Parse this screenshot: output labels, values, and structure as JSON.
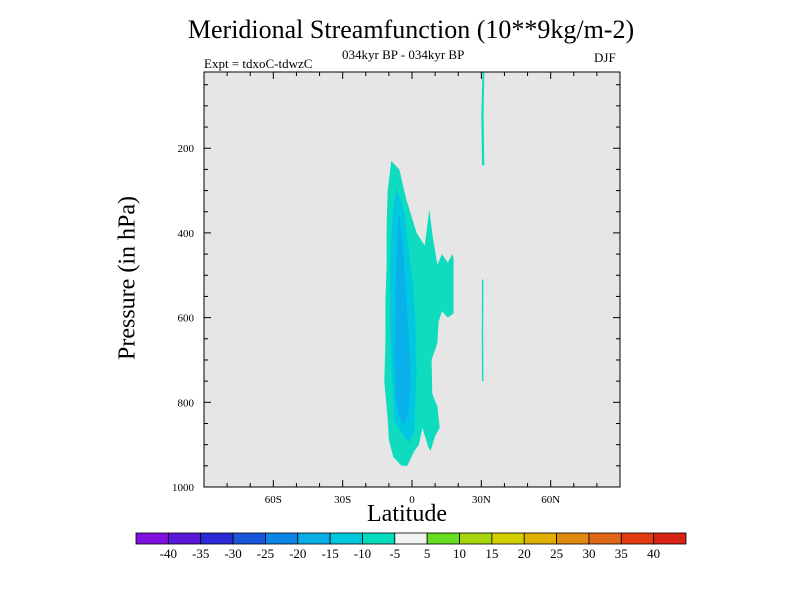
{
  "title": "Meridional Streamfunction (10**9kg/m-2)",
  "subtitle": "034kyr BP - 034kyr BP",
  "experiment_label": "Expt = tdxoC-tdwzC",
  "season_label": "DJF",
  "chart_data": {
    "type": "contour",
    "xlabel": "Latitude",
    "ylabel": "Pressure (in hPa)",
    "x_ticks": [
      {
        "value": -60,
        "label": "60S"
      },
      {
        "value": -30,
        "label": "30S"
      },
      {
        "value": 0,
        "label": "0"
      },
      {
        "value": 30,
        "label": "30N"
      },
      {
        "value": 60,
        "label": "60N"
      }
    ],
    "y_ticks": [
      {
        "value": 200,
        "label": "200"
      },
      {
        "value": 400,
        "label": "400"
      },
      {
        "value": 600,
        "label": "600"
      },
      {
        "value": 800,
        "label": "800"
      },
      {
        "value": 1000,
        "label": "1000"
      }
    ],
    "xlim": [
      -90,
      90
    ],
    "ylim": [
      1000,
      20
    ],
    "background_color": "#e6e6e6",
    "contour_levels": [
      -40,
      -35,
      -30,
      -25,
      -20,
      -15,
      -10,
      -5,
      5,
      10,
      15,
      20,
      25,
      30,
      35,
      40
    ],
    "colorbar_colors": [
      "#7f10e0",
      "#5a18d8",
      "#2c2ad6",
      "#1a56dc",
      "#0b86e6",
      "#0aaee6",
      "#00c8dc",
      "#06dcbc",
      "#f2f2f2",
      "#66dc22",
      "#a6d60c",
      "#d4d000",
      "#e0b000",
      "#e08a10",
      "#e06618",
      "#e23c10",
      "#d82214"
    ],
    "filled_regions": [
      {
        "label": "-5 to -10",
        "color": "#0fdcbf",
        "boundary": [
          [
            30.5,
            20
          ],
          [
            31.3,
            20
          ],
          [
            31,
            120
          ],
          [
            31.3,
            240
          ],
          [
            30.3,
            240
          ],
          [
            30,
            120
          ]
        ]
      },
      {
        "label": "-5 to -10",
        "color": "#0fdcbf",
        "boundary": [
          [
            30.3,
            510
          ],
          [
            30.9,
            510
          ],
          [
            30.8,
            640
          ],
          [
            30.9,
            750
          ],
          [
            30.3,
            750
          ],
          [
            30.2,
            640
          ]
        ]
      },
      {
        "label": "-5 to -10",
        "color": "#0fdcbf",
        "boundary": [
          [
            -9,
            230
          ],
          [
            -5.5,
            250
          ],
          [
            -2.5,
            320
          ],
          [
            2,
            400
          ],
          [
            5.5,
            430
          ],
          [
            7.5,
            345
          ],
          [
            9,
            410
          ],
          [
            11,
            475
          ],
          [
            13,
            450
          ],
          [
            15.5,
            470
          ],
          [
            17.5,
            450
          ],
          [
            18,
            460
          ],
          [
            18,
            590
          ],
          [
            15.5,
            600
          ],
          [
            13,
            585
          ],
          [
            11.5,
            610
          ],
          [
            11,
            660
          ],
          [
            8.5,
            700
          ],
          [
            8.8,
            780
          ],
          [
            11,
            810
          ],
          [
            12,
            860
          ],
          [
            10,
            880
          ],
          [
            8,
            915
          ],
          [
            7,
            905
          ],
          [
            4.5,
            860
          ],
          [
            3,
            900
          ],
          [
            1,
            915
          ],
          [
            -2,
            950
          ],
          [
            -4.5,
            950
          ],
          [
            -8,
            930
          ],
          [
            -10,
            890
          ],
          [
            -10.5,
            840
          ],
          [
            -12,
            750
          ],
          [
            -11.5,
            660
          ],
          [
            -11.5,
            560
          ],
          [
            -11,
            480
          ],
          [
            -11,
            380
          ],
          [
            -10.5,
            300
          ]
        ]
      },
      {
        "label": "-10 to -15",
        "color": "#00c8e0",
        "boundary": [
          [
            -7,
            295
          ],
          [
            -5,
            320
          ],
          [
            -3,
            360
          ],
          [
            -1.5,
            440
          ],
          [
            0.5,
            530
          ],
          [
            1.5,
            620
          ],
          [
            2,
            730
          ],
          [
            1.5,
            800
          ],
          [
            1,
            870
          ],
          [
            -1,
            895
          ],
          [
            -3.5,
            880
          ],
          [
            -7.5,
            845
          ],
          [
            -8,
            790
          ],
          [
            -9,
            700
          ],
          [
            -9.5,
            600
          ],
          [
            -9.5,
            480
          ],
          [
            -8.5,
            360
          ]
        ]
      },
      {
        "label": "-15 to -20",
        "color": "#0ab0ea",
        "boundary": [
          [
            -5.5,
            350
          ],
          [
            -4,
            430
          ],
          [
            -3,
            520
          ],
          [
            -2,
            600
          ],
          [
            -1,
            680
          ],
          [
            -0.8,
            760
          ],
          [
            -1.5,
            825
          ],
          [
            -3.5,
            855
          ],
          [
            -5.5,
            835
          ],
          [
            -7,
            790
          ],
          [
            -7.5,
            700
          ],
          [
            -7.5,
            600
          ],
          [
            -7,
            500
          ],
          [
            -6.5,
            420
          ]
        ]
      }
    ]
  }
}
